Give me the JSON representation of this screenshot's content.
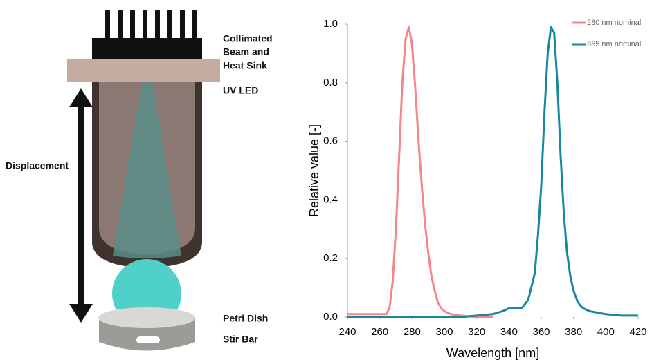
{
  "diagram": {
    "labels": {
      "collimated_beam": [
        "Collimated",
        "Beam and",
        "Heat Sink"
      ],
      "uv_led": "UV LED",
      "displacement": "Displacement",
      "petri_dish": "Petri Dish",
      "stir_bar": "Stir Bar"
    }
  },
  "chart_data": {
    "type": "line",
    "x_label": "Wavelength [nm]",
    "y_label": "Relative value [-]",
    "x": [
      240,
      250,
      260,
      264,
      266,
      268,
      270,
      272,
      274,
      276,
      278,
      280,
      282,
      284,
      286,
      288,
      290,
      292,
      294,
      296,
      298,
      300,
      304,
      310,
      320,
      330,
      336,
      340,
      344,
      348,
      352,
      356,
      358,
      360,
      362,
      364,
      366,
      368,
      370,
      372,
      374,
      376,
      378,
      380,
      382,
      384,
      386,
      390,
      400,
      410,
      420
    ],
    "series": [
      {
        "name": "280 nm nominal",
        "color": "#f4858a",
        "values": [
          0.01,
          0.01,
          0.01,
          0.01,
          0.03,
          0.12,
          0.3,
          0.55,
          0.8,
          0.95,
          0.99,
          0.93,
          0.78,
          0.6,
          0.45,
          0.32,
          0.22,
          0.14,
          0.09,
          0.05,
          0.03,
          0.02,
          0.01,
          0.005,
          0,
          0,
          null,
          null,
          null,
          null,
          null,
          null,
          null,
          null,
          null,
          null,
          null,
          null,
          null,
          null,
          null,
          null,
          null,
          null,
          null,
          null,
          null,
          null,
          null,
          null,
          null
        ]
      },
      {
        "name": "365 nm nominal",
        "color": "#17869e",
        "values": [
          0,
          0,
          0,
          0,
          0,
          0,
          0,
          0,
          0,
          0,
          0,
          0,
          0,
          0,
          0,
          0,
          0,
          0,
          0,
          0,
          0,
          0,
          0,
          0,
          0.005,
          0.01,
          0.02,
          0.03,
          0.03,
          0.03,
          0.06,
          0.15,
          0.28,
          0.45,
          0.7,
          0.9,
          0.99,
          0.97,
          0.8,
          0.55,
          0.35,
          0.22,
          0.14,
          0.09,
          0.06,
          0.04,
          0.03,
          0.02,
          0.01,
          0.005,
          0.005
        ]
      }
    ],
    "xlim": [
      240,
      420
    ],
    "xticks": [
      240,
      260,
      280,
      300,
      320,
      340,
      360,
      380,
      400,
      420
    ],
    "ylim": [
      0,
      1
    ],
    "yticks": [
      {
        "value": 0,
        "label": "0.0"
      },
      0.2,
      0.4,
      0.6,
      0.8,
      {
        "value": 1,
        "label": "1.0"
      }
    ],
    "grid": false,
    "legend": "top-right"
  }
}
